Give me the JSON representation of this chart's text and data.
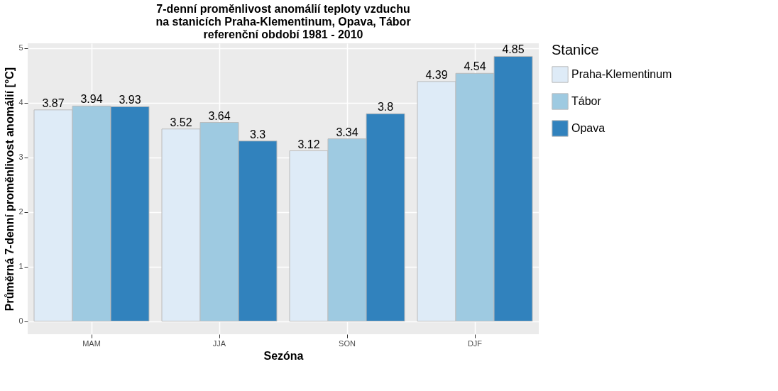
{
  "chart_data": {
    "type": "bar",
    "title": [
      "7-denní proměnlivost anomálií teploty vzduchu",
      "na stanicích Praha-Klementinum, Opava, Tábor",
      "referenční období 1981 - 2010"
    ],
    "xlabel": "Sezóna",
    "ylabel": "Průměrná 7-denní proměnlivost anomálií [°C]",
    "legend_title": "Stanice",
    "categories": [
      "MAM",
      "JJA",
      "SON",
      "DJF"
    ],
    "series": [
      {
        "name": "Praha-Klementinum",
        "color": "#deebf7",
        "values": [
          3.87,
          3.52,
          3.12,
          4.39
        ]
      },
      {
        "name": "Tábor",
        "color": "#9ecae1",
        "values": [
          3.94,
          3.64,
          3.34,
          4.54
        ]
      },
      {
        "name": "Opava",
        "color": "#3182bd",
        "values": [
          3.93,
          3.3,
          3.8,
          4.85
        ]
      }
    ],
    "ylim": [
      -0.24,
      5.09
    ],
    "yticks": [
      0,
      1,
      2,
      3,
      4,
      5
    ],
    "grid": true,
    "legend": "right",
    "data_labels": true
  }
}
